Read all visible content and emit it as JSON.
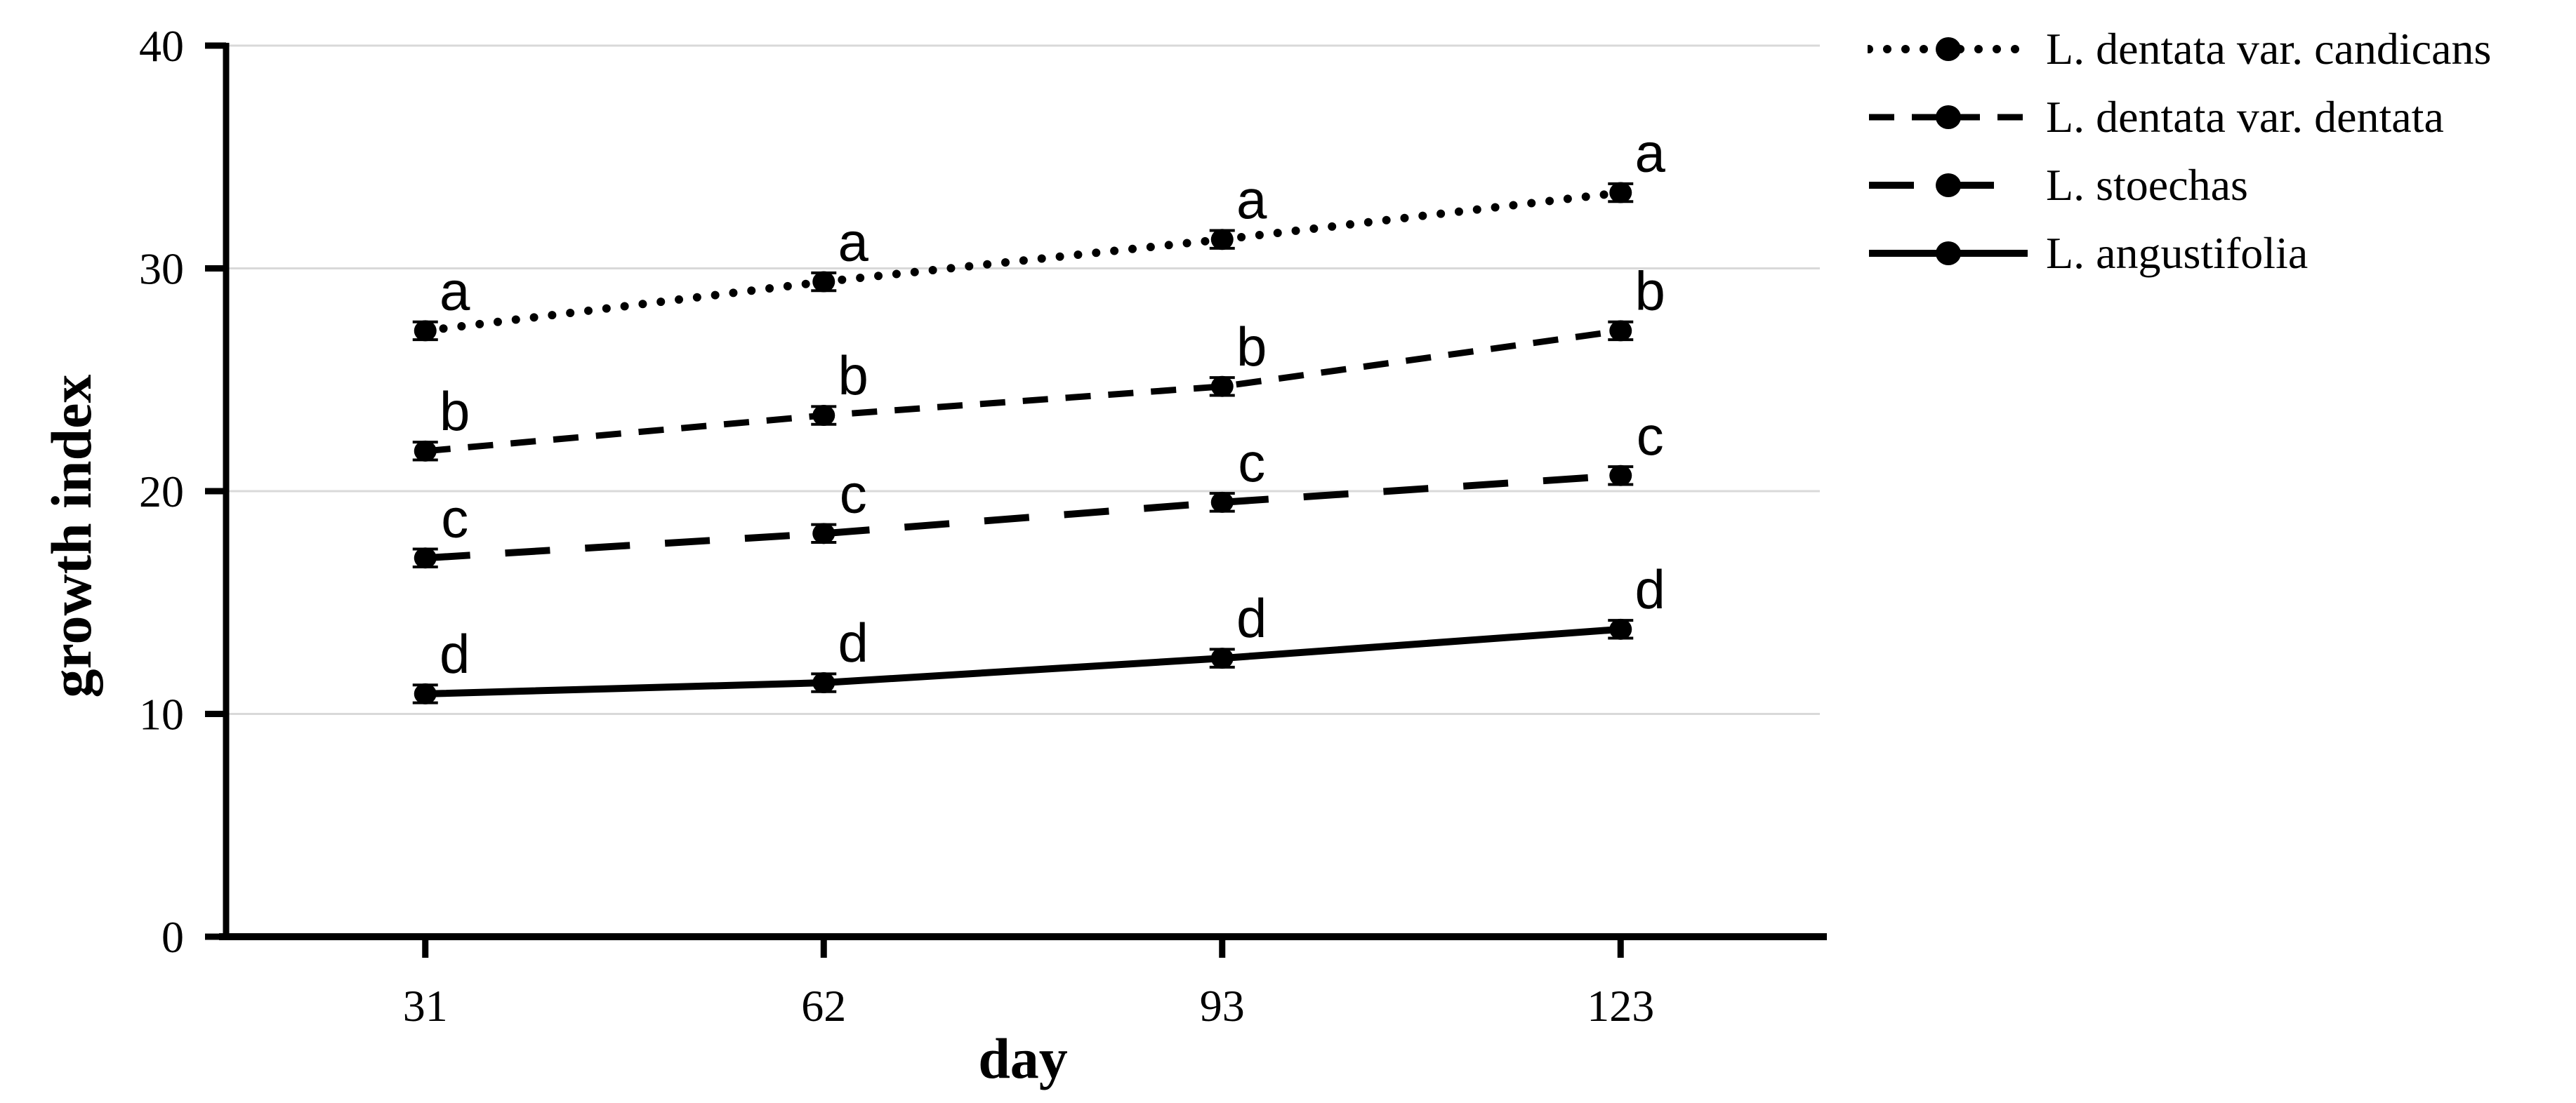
{
  "chart_data": {
    "type": "line",
    "title": "",
    "xlabel": "day",
    "ylabel": "growth index",
    "x_categories": [
      "31",
      "62",
      "93",
      "123"
    ],
    "yticks": [
      0,
      10,
      20,
      30,
      40
    ],
    "ylim": [
      0,
      40
    ],
    "grid": "horizontal-gridlines-on",
    "legend_position": "right-top",
    "error_bar": 0.4,
    "series": [
      {
        "name": "L. dentata var. candicans",
        "line_style": "dotted",
        "marker": "filled-circle",
        "values": [
          27.2,
          29.4,
          31.3,
          33.4
        ],
        "point_labels": [
          "a",
          "a",
          "a",
          "a"
        ]
      },
      {
        "name": "L. dentata var. dentata",
        "line_style": "dashed",
        "marker": "filled-circle",
        "values": [
          21.8,
          23.4,
          24.7,
          27.2
        ],
        "point_labels": [
          "b",
          "b",
          "b",
          "b"
        ]
      },
      {
        "name": "L. stoechas",
        "line_style": "long-dash",
        "marker": "filled-circle",
        "values": [
          17.0,
          18.1,
          19.5,
          20.7
        ],
        "point_labels": [
          "c",
          "c",
          "c",
          "c"
        ]
      },
      {
        "name": "L. angustifolia",
        "line_style": "solid",
        "marker": "filled-circle",
        "values": [
          10.9,
          11.4,
          12.5,
          13.8
        ],
        "point_labels": [
          "d",
          "d",
          "d",
          "d"
        ]
      }
    ],
    "colors": {
      "line": "#000000",
      "text": "#000000",
      "gridline": "#d9d9d9",
      "background": "#ffffff"
    }
  }
}
